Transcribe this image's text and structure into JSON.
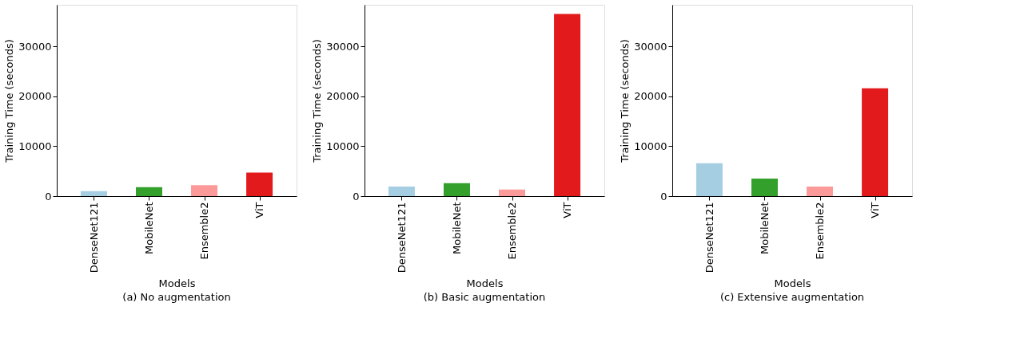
{
  "chart_data": [
    {
      "type": "bar",
      "title": "(a) No augmentation",
      "xlabel": "Models",
      "ylabel": "Training Time (seconds)",
      "categories": [
        "DenseNet121",
        "MobileNet",
        "Ensemble2",
        "ViT"
      ],
      "values": [
        1000,
        1800,
        2200,
        4700
      ],
      "colors": [
        "#a6cee3",
        "#33a02c",
        "#fb9a99",
        "#e31a1c"
      ],
      "ylim": [
        0,
        38350
      ],
      "yticks": [
        0,
        10000,
        20000,
        30000
      ],
      "grid": false,
      "legend": false
    },
    {
      "type": "bar",
      "title": "(b) Basic augmentation",
      "xlabel": "Models",
      "ylabel": "Training Time (seconds)",
      "categories": [
        "DenseNet121",
        "MobileNet",
        "Ensemble2",
        "ViT"
      ],
      "values": [
        1900,
        2600,
        1300,
        36500
      ],
      "colors": [
        "#a6cee3",
        "#33a02c",
        "#fb9a99",
        "#e31a1c"
      ],
      "ylim": [
        0,
        38350
      ],
      "yticks": [
        0,
        10000,
        20000,
        30000
      ],
      "grid": false,
      "legend": false
    },
    {
      "type": "bar",
      "title": "(c) Extensive augmentation",
      "xlabel": "Models",
      "ylabel": "Training Time (seconds)",
      "categories": [
        "DenseNet121",
        "MobileNet",
        "Ensemble2",
        "ViT"
      ],
      "values": [
        6600,
        3500,
        1900,
        21600
      ],
      "colors": [
        "#a6cee3",
        "#33a02c",
        "#fb9a99",
        "#e31a1c"
      ],
      "ylim": [
        0,
        38350
      ],
      "yticks": [
        0,
        10000,
        20000,
        30000
      ],
      "grid": false,
      "legend": false
    }
  ]
}
